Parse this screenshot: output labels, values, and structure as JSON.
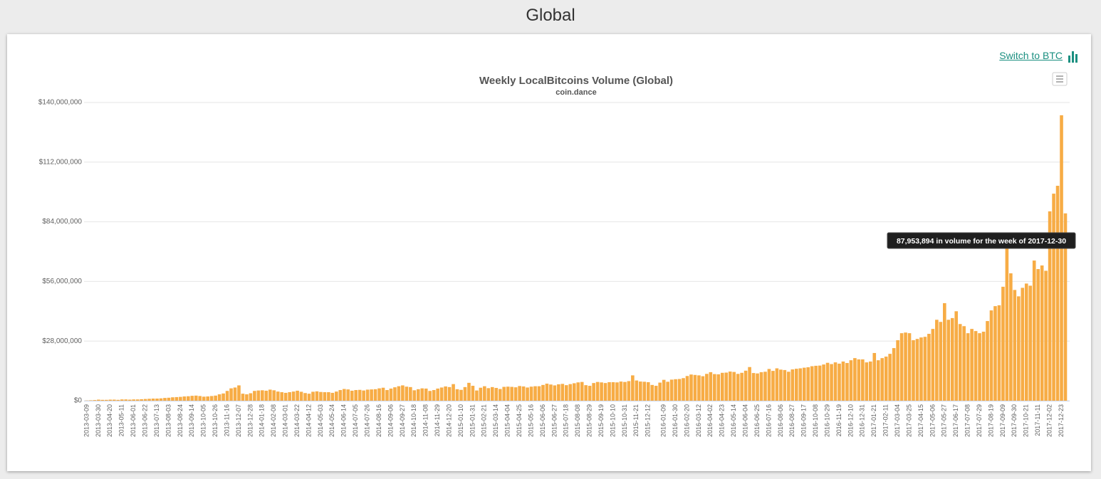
{
  "page": {
    "heading": "Global",
    "switch_link": "Switch to BTC"
  },
  "chart_data": {
    "type": "bar",
    "title": "Weekly LocalBitcoins Volume (Global)",
    "subtitle": "coin.dance",
    "tooltip": "87,953,894 in volume for the week of 2017-12-30",
    "color": "#f7ac45",
    "grid": true,
    "ylim": [
      0,
      140000000
    ],
    "yticks": [
      {
        "value": 0,
        "label": "$0"
      },
      {
        "value": 28000000,
        "label": "$28,000,000"
      },
      {
        "value": 56000000,
        "label": "$56,000,000"
      },
      {
        "value": 84000000,
        "label": "$84,000,000"
      },
      {
        "value": 112000000,
        "label": "$112,000,000"
      },
      {
        "value": 140000000,
        "label": "$140,000,000"
      }
    ],
    "categories": [
      "2013-03-09",
      null,
      null,
      "2013-03-30",
      null,
      null,
      "2013-04-20",
      null,
      null,
      "2013-05-11",
      null,
      null,
      "2013-06-01",
      null,
      null,
      "2013-06-22",
      null,
      null,
      "2013-07-13",
      null,
      null,
      "2013-08-03",
      null,
      null,
      "2013-08-24",
      null,
      null,
      "2013-09-14",
      null,
      null,
      "2013-10-05",
      null,
      null,
      "2013-10-26",
      null,
      null,
      "2013-11-16",
      null,
      null,
      "2013-12-07",
      null,
      null,
      "2013-12-28",
      null,
      null,
      "2014-01-18",
      null,
      null,
      "2014-02-08",
      null,
      null,
      "2014-03-01",
      null,
      null,
      "2014-03-22",
      null,
      null,
      "2014-04-12",
      null,
      null,
      "2014-05-03",
      null,
      null,
      "2014-05-24",
      null,
      null,
      "2014-06-14",
      null,
      null,
      "2014-07-05",
      null,
      null,
      "2014-07-26",
      null,
      null,
      "2014-08-16",
      null,
      null,
      "2014-09-06",
      null,
      null,
      "2014-09-27",
      null,
      null,
      "2014-10-18",
      null,
      null,
      "2014-11-08",
      null,
      null,
      "2014-11-29",
      null,
      null,
      "2014-12-20",
      null,
      null,
      "2015-01-10",
      null,
      null,
      "2015-01-31",
      null,
      null,
      "2015-02-21",
      null,
      null,
      "2015-03-14",
      null,
      null,
      "2015-04-04",
      null,
      null,
      "2015-04-25",
      null,
      null,
      "2015-05-16",
      null,
      null,
      "2015-06-06",
      null,
      null,
      "2015-06-27",
      null,
      null,
      "2015-07-18",
      null,
      null,
      "2015-08-08",
      null,
      null,
      "2015-08-29",
      null,
      null,
      "2015-09-19",
      null,
      null,
      "2015-10-10",
      null,
      null,
      "2015-10-31",
      null,
      null,
      "2015-11-21",
      null,
      null,
      "2015-12-12",
      null,
      null,
      null,
      "2016-01-09",
      null,
      null,
      "2016-01-30",
      null,
      null,
      "2016-02-20",
      null,
      null,
      "2016-03-12",
      null,
      null,
      "2016-04-02",
      null,
      null,
      "2016-04-23",
      null,
      null,
      "2016-05-14",
      null,
      null,
      "2016-06-04",
      null,
      null,
      "2016-06-25",
      null,
      null,
      "2016-07-16",
      null,
      null,
      "2016-08-06",
      null,
      null,
      "2016-08-27",
      null,
      null,
      "2016-09-17",
      null,
      null,
      "2016-10-08",
      null,
      null,
      "2016-10-29",
      null,
      null,
      "2016-11-19",
      null,
      null,
      "2016-12-10",
      null,
      null,
      "2016-12-31",
      null,
      null,
      "2017-01-21",
      null,
      null,
      "2017-02-11",
      null,
      null,
      "2017-03-04",
      null,
      null,
      "2017-03-25",
      null,
      null,
      "2017-04-15",
      null,
      null,
      "2017-05-06",
      null,
      null,
      "2017-05-27",
      null,
      null,
      "2017-06-17",
      null,
      null,
      "2017-07-08",
      null,
      null,
      "2017-07-29",
      null,
      null,
      "2017-08-19",
      null,
      null,
      "2017-09-09",
      null,
      null,
      "2017-09-30",
      null,
      null,
      "2017-10-21",
      null,
      null,
      "2017-11-11",
      null,
      null,
      "2017-12-02",
      null,
      null,
      "2017-12-23",
      null
    ],
    "values": [
      100000,
      200000,
      300000,
      500000,
      400000,
      400000,
      500000,
      500000,
      400000,
      600000,
      600000,
      500000,
      600000,
      600000,
      700000,
      800000,
      900000,
      1000000,
      1000000,
      1100000,
      1300000,
      1400000,
      1600000,
      1700000,
      1800000,
      2000000,
      2100000,
      2300000,
      2400000,
      2200000,
      1900000,
      2000000,
      2200000,
      2400000,
      3000000,
      3400000,
      4600000,
      5800000,
      6200000,
      7200000,
      3300000,
      3000000,
      3500000,
      4600000,
      4800000,
      4900000,
      4700000,
      5200000,
      4900000,
      4300000,
      4000000,
      3700000,
      4000000,
      4300000,
      4700000,
      4200000,
      3600000,
      3300000,
      4200000,
      4400000,
      4100000,
      4000000,
      4000000,
      3700000,
      4300000,
      5000000,
      5500000,
      5300000,
      4700000,
      5000000,
      5100000,
      4800000,
      5200000,
      5300000,
      5400000,
      5800000,
      6100000,
      5000000,
      5700000,
      6300000,
      6800000,
      7200000,
      6600000,
      6400000,
      4900000,
      5400000,
      5800000,
      5700000,
      4600000,
      5000000,
      5700000,
      6200000,
      6700000,
      6400000,
      7800000,
      5400000,
      5100000,
      6400000,
      8400000,
      7000000,
      4800000,
      6100000,
      6800000,
      5900000,
      6400000,
      6000000,
      5500000,
      6500000,
      6600000,
      6500000,
      6300000,
      6900000,
      6700000,
      6200000,
      6600000,
      6800000,
      6800000,
      7400000,
      8000000,
      7600000,
      7200000,
      7700000,
      7900000,
      7300000,
      7800000,
      8200000,
      8600000,
      8800000,
      7300000,
      7000000,
      8300000,
      8800000,
      8600000,
      8300000,
      8700000,
      8700000,
      8600000,
      9000000,
      8800000,
      9200000,
      11900000,
      9500000,
      9000000,
      8900000,
      8700000,
      7400000,
      7000000,
      8500000,
      9800000,
      8900000,
      9900000,
      10100000,
      10200000,
      10600000,
      11600000,
      12300000,
      12100000,
      11900000,
      11500000,
      12600000,
      13400000,
      12500000,
      12400000,
      13100000,
      13200000,
      13700000,
      13500000,
      12600000,
      13100000,
      14100000,
      15800000,
      13000000,
      12800000,
      13400000,
      13600000,
      14900000,
      14000000,
      15200000,
      14600000,
      14400000,
      13600000,
      14700000,
      15000000,
      15200000,
      15500000,
      15700000,
      16200000,
      16400000,
      16500000,
      17000000,
      17800000,
      17200000,
      18000000,
      17400000,
      18400000,
      17700000,
      19000000,
      20000000,
      19400000,
      19400000,
      18000000,
      18400000,
      22400000,
      19000000,
      20000000,
      20700000,
      22000000,
      24700000,
      28400000,
      31700000,
      32000000,
      31700000,
      28400000,
      29000000,
      29700000,
      30000000,
      31400000,
      33700000,
      38000000,
      37000000,
      45800000,
      38000000,
      38800000,
      42000000,
      36000000,
      35000000,
      31700000,
      33700000,
      32700000,
      31700000,
      32400000,
      37400000,
      42400000,
      44400000,
      44800000,
      53500000,
      72800000,
      59800000,
      52000000,
      49000000,
      53000000,
      55000000,
      54000000,
      65800000,
      61800000,
      63500000,
      61000000,
      88900000,
      97200000,
      100900000,
      134000000,
      87953894
    ]
  }
}
